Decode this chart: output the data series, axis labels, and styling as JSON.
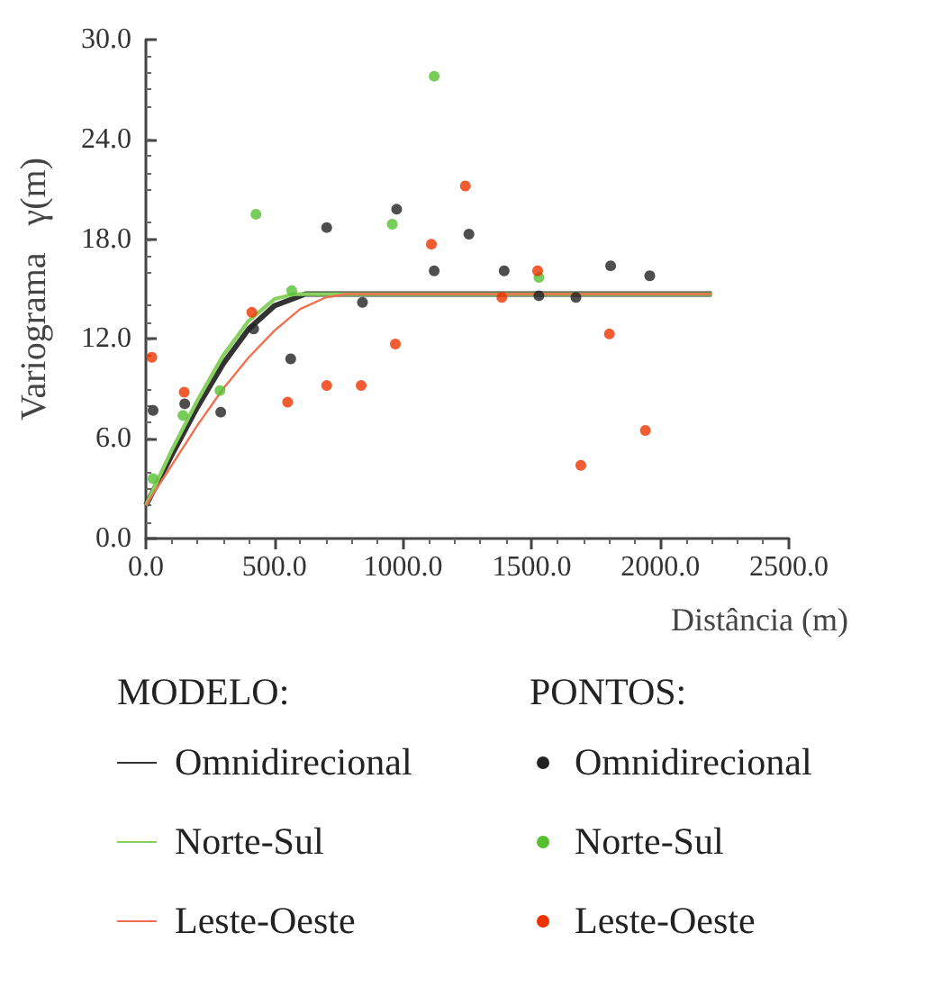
{
  "chart_data": {
    "type": "scatter",
    "xlabel": "Distância (m)",
    "ylabel": "Variograma   γ(m)",
    "xlim": [
      0,
      2500
    ],
    "ylim": [
      0,
      30
    ],
    "xticks": [
      {
        "value": 0,
        "label": "0.0"
      },
      {
        "value": 500,
        "label": "500.0"
      },
      {
        "value": 1000,
        "label": "1000.0"
      },
      {
        "value": 1500,
        "label": "1500.0"
      },
      {
        "value": 2000,
        "label": "2000.0"
      },
      {
        "value": 2500,
        "label": "2500.0"
      }
    ],
    "yticks": [
      {
        "value": 0,
        "label": "0.0"
      },
      {
        "value": 6,
        "label": "6.0"
      },
      {
        "value": 12,
        "label": "12.0"
      },
      {
        "value": 18,
        "label": "18.0"
      },
      {
        "value": 24,
        "label": "24.0"
      },
      {
        "value": 30,
        "label": "30.0"
      }
    ],
    "grid": false,
    "legend": "bottom",
    "annotations": [
      "MODELO:",
      "PONTOS:"
    ],
    "series": [
      {
        "name": "Omnidirecional",
        "type": "line",
        "marker": "none",
        "color": "#333333",
        "x": [
          0,
          100,
          200,
          300,
          400,
          500,
          620,
          2200
        ],
        "values": [
          2.0,
          5.0,
          7.9,
          10.5,
          12.6,
          14.0,
          14.7,
          14.7
        ]
      },
      {
        "name": "Norte-Sul",
        "type": "line",
        "marker": "none",
        "color": "#88d060",
        "x": [
          0,
          100,
          200,
          300,
          400,
          500,
          580,
          2200
        ],
        "values": [
          2.0,
          5.3,
          8.3,
          11.0,
          13.1,
          14.4,
          14.7,
          14.7
        ]
      },
      {
        "name": "Leste-Oeste",
        "type": "line",
        "marker": "none",
        "color": "#f07050",
        "x": [
          0,
          100,
          200,
          300,
          400,
          500,
          600,
          700,
          780,
          2200
        ],
        "values": [
          2.0,
          4.4,
          6.8,
          9.0,
          10.9,
          12.5,
          13.8,
          14.5,
          14.7,
          14.7
        ]
      },
      {
        "name": "Omnidirecional",
        "marker": "circle",
        "color": "#222222",
        "x": [
          28,
          151,
          291,
          419,
          563,
          703,
          842,
          975,
          1121,
          1256,
          1393,
          1528,
          1672,
          1807,
          1959
        ],
        "values": [
          7.7,
          8.1,
          7.6,
          12.6,
          10.8,
          18.7,
          14.2,
          19.8,
          16.1,
          18.3,
          16.1,
          14.6,
          14.5,
          16.4,
          15.8
        ]
      },
      {
        "name": "Norte-Sul",
        "marker": "circle",
        "color": "#55c030",
        "x": [
          28,
          144,
          288,
          428,
          567,
          958,
          1121,
          1528
        ],
        "values": [
          3.6,
          7.4,
          8.9,
          19.5,
          14.9,
          18.9,
          27.8,
          15.7
        ]
      },
      {
        "name": "Leste-Oeste",
        "marker": "circle",
        "color": "#ee3300",
        "x": [
          23,
          149,
          412,
          551,
          703,
          837,
          970,
          1110,
          1242,
          1384,
          1523,
          1691,
          1802,
          1942
        ],
        "values": [
          10.9,
          8.8,
          13.6,
          8.2,
          9.2,
          9.2,
          11.7,
          17.7,
          21.2,
          14.5,
          16.1,
          4.4,
          12.3,
          6.5
        ]
      }
    ]
  }
}
